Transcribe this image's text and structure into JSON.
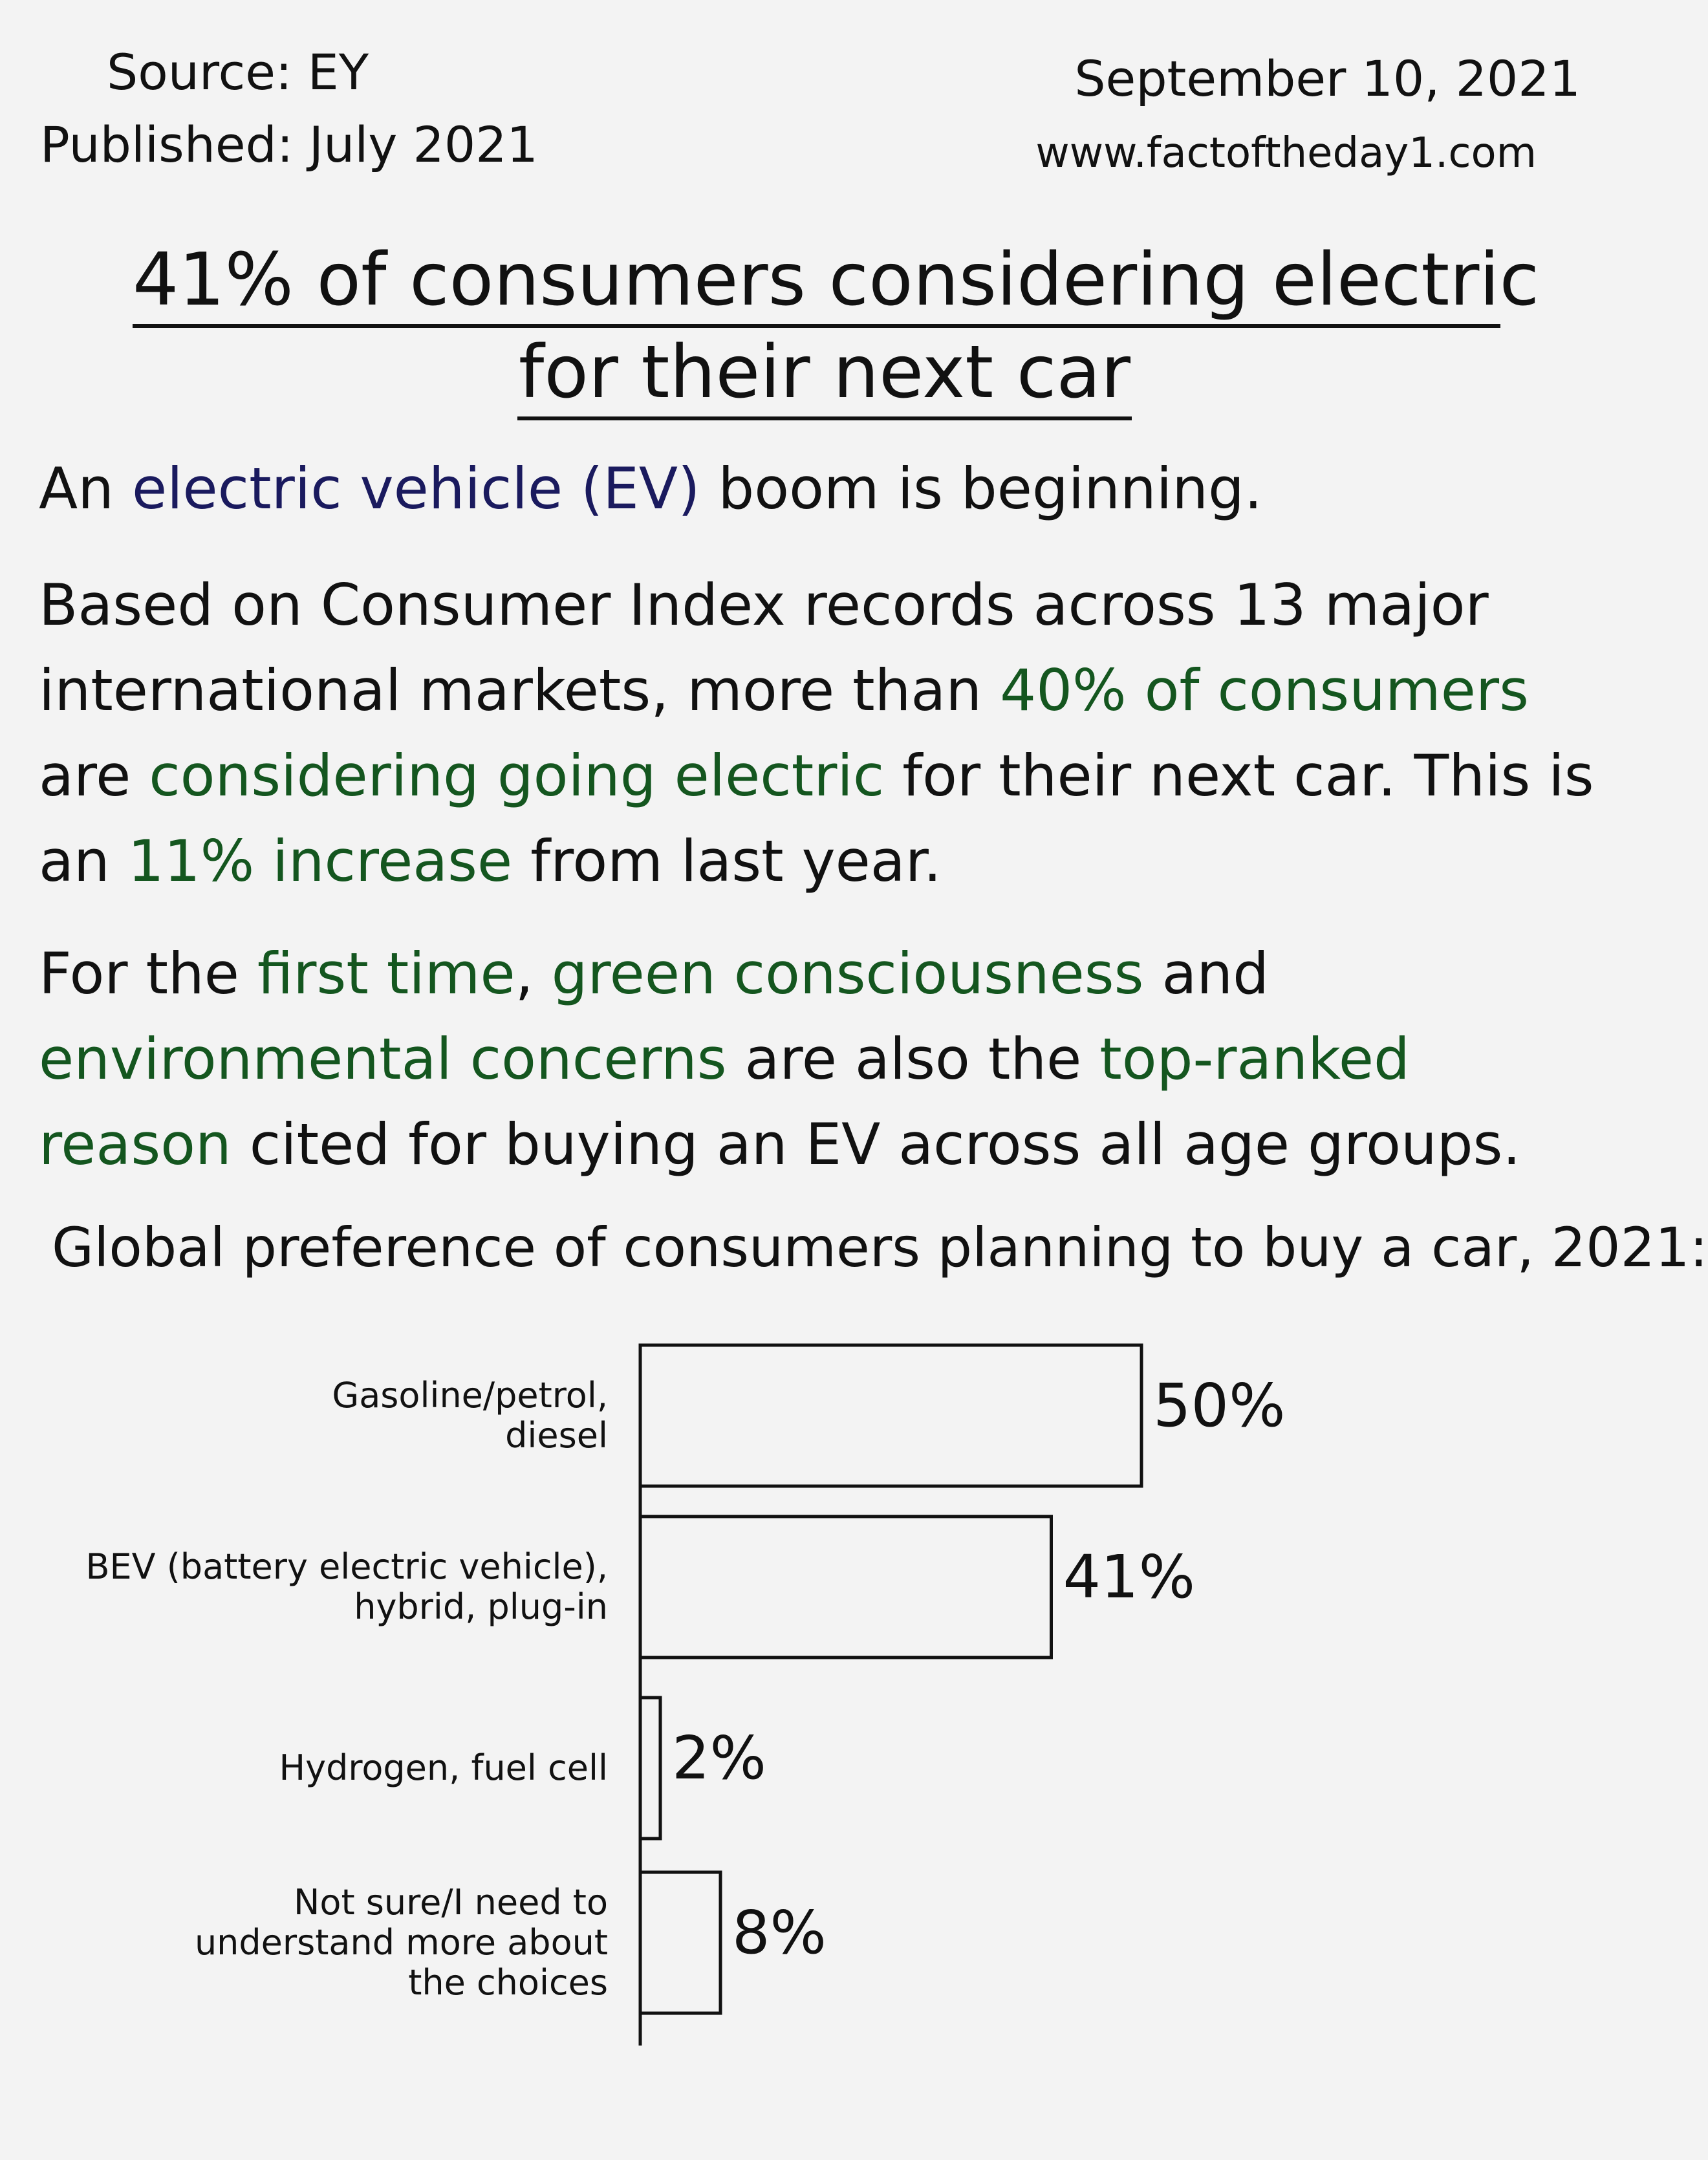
{
  "header": {
    "source": "Source: EY",
    "published": "Published: July 2021",
    "date": "September 10, 2021",
    "website": "www.factoftheday1.com"
  },
  "title": {
    "line1": "41% of consumers considering electric",
    "line2": "for their next car"
  },
  "paragraphs": {
    "p1": {
      "a": "An ",
      "b": "electric vehicle (EV)",
      "c": " boom is beginning."
    },
    "p2": {
      "a": "Based on Consumer Index records across 13 major international markets, more than ",
      "b": "40% of consumers",
      "c": " are ",
      "d": "considering going electric",
      "e": " for their next car. This is an ",
      "f": "11% increase",
      "g": " from last year."
    },
    "p3": {
      "a": "For the ",
      "b": "first time",
      "c": ", ",
      "d": "green consciousness",
      "e": " and ",
      "f": "environmental concerns",
      "g": " are also the ",
      "h": "top-ranked reason",
      "i": " cited for buying an EV across all age groups."
    }
  },
  "chart_heading": "Global preference of consumers planning to buy a car, 2021:",
  "colors": {
    "background": "#f3f3f3",
    "ink": "#111111",
    "highlight_blue": "#1a1a5e",
    "highlight_green": "#14561f"
  },
  "chart_data": {
    "type": "bar",
    "orientation": "horizontal",
    "title": "Global preference of consumers planning to buy a car, 2021:",
    "categories": [
      [
        "Gasoline/petrol,",
        "diesel"
      ],
      [
        "BEV (battery electric vehicle),",
        "hybrid, plug-in"
      ],
      [
        "Hydrogen, fuel cell"
      ],
      [
        "Not sure/I need to",
        "understand more about",
        "the choices"
      ]
    ],
    "values": [
      50,
      41,
      2,
      8
    ],
    "value_labels": [
      "50%",
      "41%",
      "2%",
      "8%"
    ],
    "unit": "%",
    "xlim": [
      0,
      50
    ],
    "grid": false,
    "legend": "none"
  }
}
